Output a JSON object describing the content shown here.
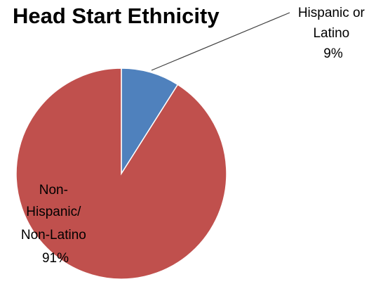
{
  "chart_data": {
    "type": "pie",
    "title": "Head Start Ethnicity",
    "slices": [
      {
        "label_lines": [
          "Hispanic or",
          "Latino",
          "9%"
        ],
        "value": 9,
        "color": "#4f81bd"
      },
      {
        "label_lines": [
          "Non-",
          "Hispanic/",
          "Non-Latino",
          "91%"
        ],
        "value": 91,
        "color": "#c0504d"
      }
    ],
    "start": "12 o'clock",
    "direction": "clockwise",
    "legend": "none",
    "slice_border_color": "#ffffff"
  }
}
